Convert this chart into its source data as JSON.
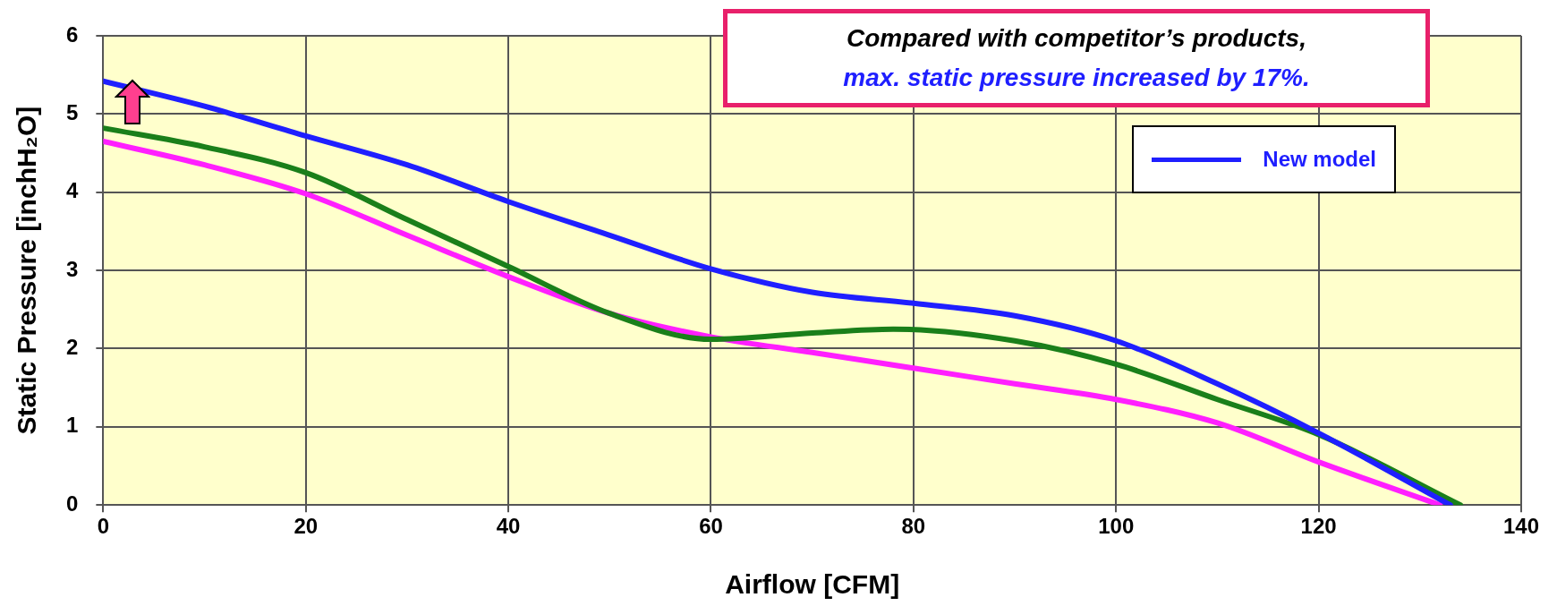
{
  "chart_data": {
    "type": "line",
    "xlabel": "Airflow [CFM]",
    "ylabel": "Static Pressure [inchH₂O]",
    "annotations": [
      "Compared  with competitor’s products,",
      "max. static pressure increased by 17%."
    ],
    "xlim": [
      0,
      140
    ],
    "xticks": [
      0,
      20,
      40,
      60,
      80,
      100,
      120,
      140
    ],
    "ylim": [
      0,
      6
    ],
    "yticks": [
      0,
      1,
      2,
      3,
      4,
      5,
      6
    ],
    "grid": true,
    "legend": "top right",
    "marker": "none",
    "line_style": "solid",
    "series": [
      {
        "name": "New model",
        "color": "#1f1fff",
        "x": [
          0,
          10,
          20,
          30,
          40,
          50,
          60,
          70,
          80,
          90,
          100,
          110,
          120,
          133
        ],
        "values": [
          5.42,
          5.1,
          4.72,
          4.35,
          3.88,
          3.45,
          3.02,
          2.72,
          2.58,
          2.42,
          2.1,
          1.55,
          0.92,
          0
        ]
      },
      {
        "color": "#1a7f1a",
        "x": [
          0,
          10,
          20,
          30,
          40,
          50,
          60,
          70,
          78,
          90,
          100,
          110,
          120,
          134
        ],
        "values": [
          4.82,
          4.58,
          4.25,
          3.65,
          3.05,
          2.45,
          2.12,
          2.2,
          2.25,
          2.1,
          1.8,
          1.35,
          0.9,
          0
        ]
      },
      {
        "color": "#ff1fff",
        "x": [
          0,
          10,
          20,
          30,
          40,
          50,
          60,
          70,
          80,
          90,
          100,
          110,
          120,
          132
        ],
        "values": [
          4.65,
          4.35,
          3.98,
          3.45,
          2.92,
          2.45,
          2.15,
          1.95,
          1.75,
          1.55,
          1.35,
          1.05,
          0.55,
          0
        ]
      }
    ]
  }
}
